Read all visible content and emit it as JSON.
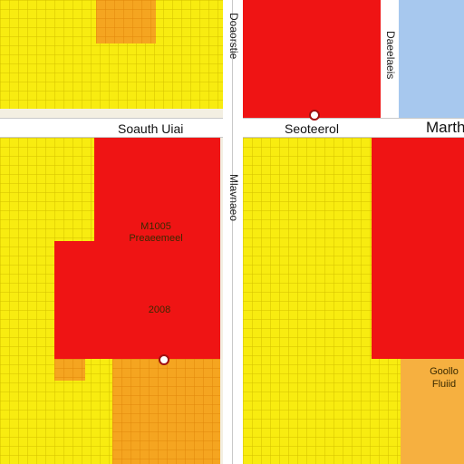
{
  "streets": {
    "horizontal_left": "Soauth Uiai",
    "horizontal_center": "Seoteerol",
    "horizontal_right": "Marth",
    "vertical_top_left": "Doaorstie",
    "vertical_top_right": "Daeelaeis",
    "vertical_middle": "Mlavnaeo"
  },
  "zones": {
    "center_left_title_line1": "M1005",
    "center_left_title_line2": "Preaeemeel",
    "center_left_year": "2008",
    "bottom_right_line1": "Goollo",
    "bottom_right_line2": "Fluiid"
  },
  "legend_colors": {
    "yellow": "#f8ec10",
    "orange": "#f5a520",
    "red": "#ef1414",
    "blue": "#a7c8ee",
    "road": "#ffffff"
  },
  "markers": [
    {
      "name": "top-center-marker"
    },
    {
      "name": "center-left-marker"
    }
  ]
}
